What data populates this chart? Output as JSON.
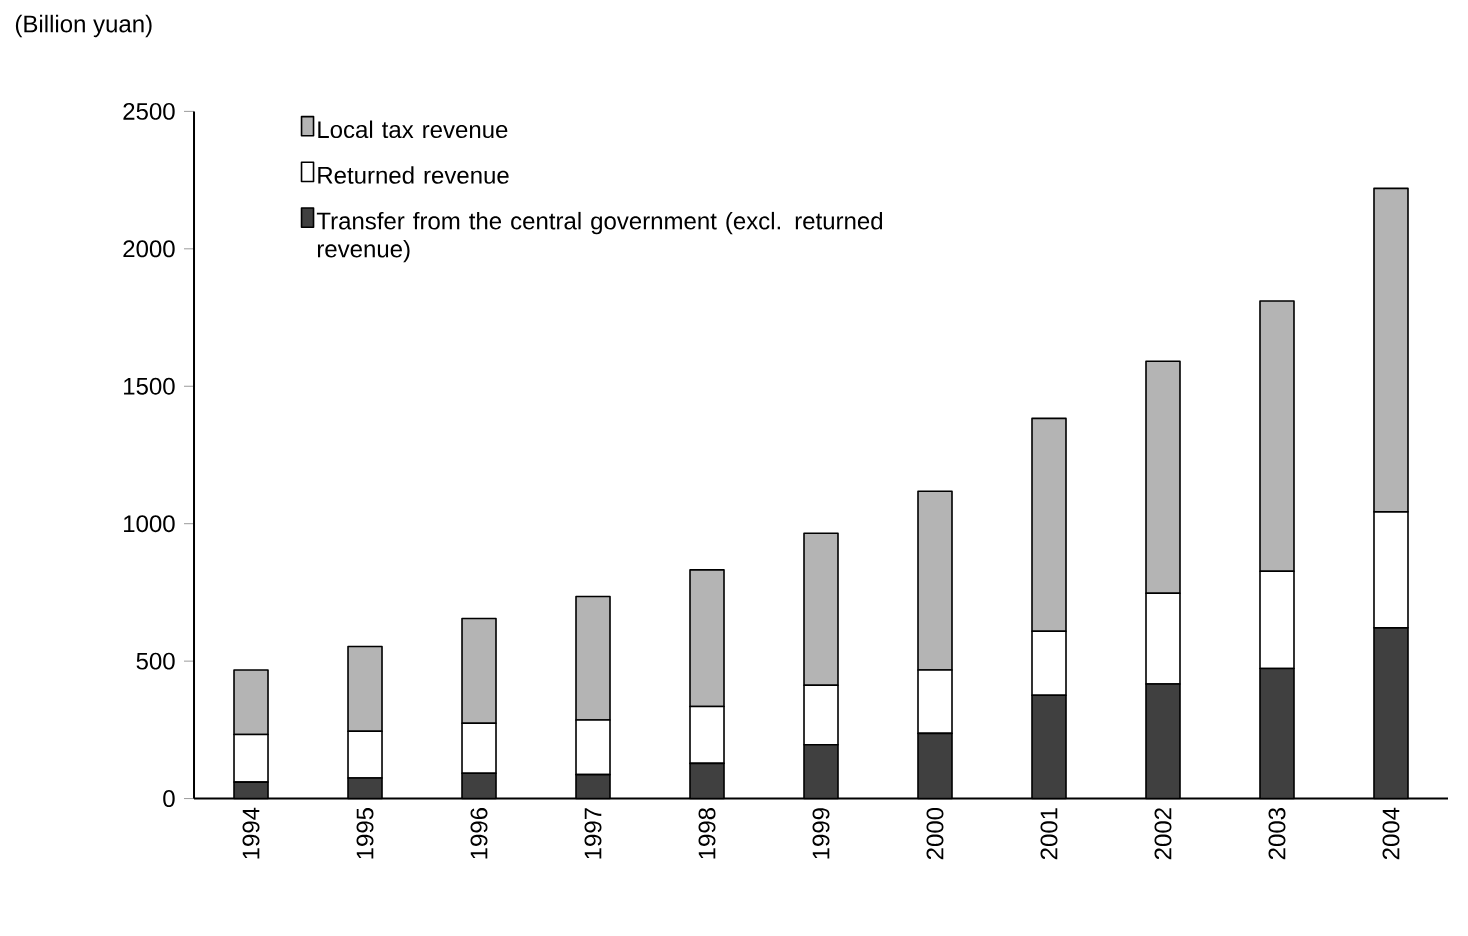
{
  "chart_data": {
    "type": "bar",
    "stacked": true,
    "ylabel": "(Billion yuan)",
    "categories": [
      "1994",
      "1995",
      "1996",
      "1997",
      "1998",
      "1999",
      "2000",
      "2001",
      "2002",
      "2003",
      "2004"
    ],
    "series": [
      {
        "name": "Transfer from the central government (excl. returned revenue)",
        "color": "#404040",
        "values": [
          60,
          75,
          92,
          87,
          128,
          196,
          237,
          376,
          417,
          473,
          621
        ]
      },
      {
        "name": "Returned revenue",
        "color": "#ffffff",
        "values": [
          173,
          170,
          182,
          199,
          207,
          216,
          231,
          233,
          330,
          354,
          422
        ]
      },
      {
        "name": "Local tax revenue",
        "color": "#b4b4b4",
        "values": [
          235,
          308,
          381,
          449,
          497,
          553,
          650,
          774,
          844,
          983,
          1177
        ]
      }
    ],
    "ylim": [
      0,
      2500
    ],
    "yticks": [
      0,
      500,
      1000,
      1500,
      2000,
      2500
    ],
    "legend": "top left",
    "grid": false
  }
}
